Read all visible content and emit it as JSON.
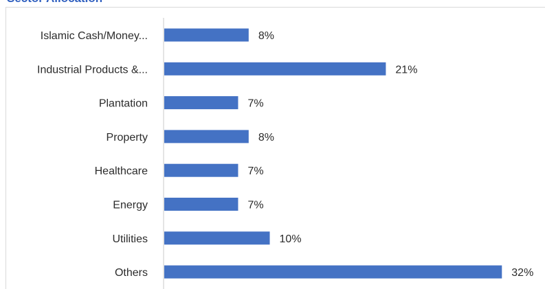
{
  "chart_data": {
    "type": "bar",
    "orientation": "horizontal",
    "title": "Sector Allocation",
    "categories": [
      "Islamic Cash/Money...",
      "Industrial Products &...",
      "Plantation",
      "Property",
      "Healthcare",
      "Energy",
      "Utilities",
      "Others"
    ],
    "values": [
      8,
      21,
      7,
      8,
      7,
      7,
      10,
      32
    ],
    "value_labels": [
      "8%",
      "21%",
      "7%",
      "8%",
      "7%",
      "7%",
      "10%",
      "32%"
    ],
    "xlim": [
      0,
      34
    ],
    "grid": false,
    "legend": "none",
    "bar_color": "#4472c4",
    "title_color": "#2f5fbf"
  }
}
